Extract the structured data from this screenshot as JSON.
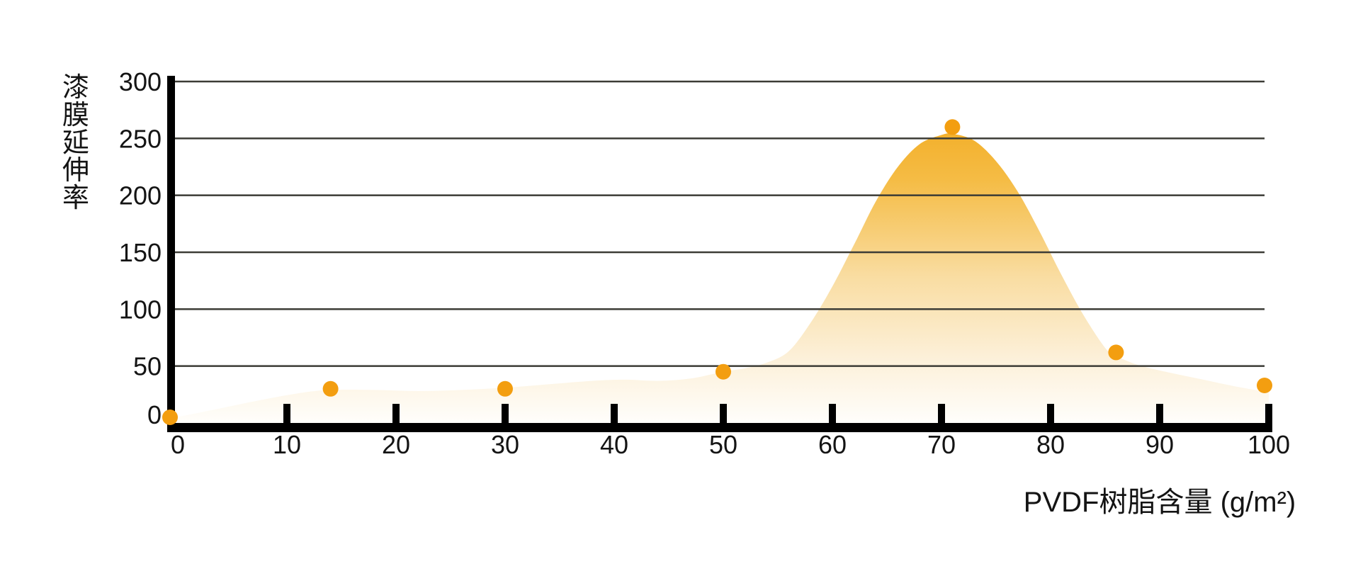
{
  "page": {
    "background_color": "#ffffff"
  },
  "chart_data": {
    "type": "area",
    "title": "",
    "xlabel": "PVDF树脂含量 (g/m²)",
    "ylabel": "漆膜延伸率",
    "xlim": [
      0,
      100
    ],
    "ylim": [
      0,
      300
    ],
    "x_ticks": [
      0,
      10,
      20,
      30,
      40,
      50,
      60,
      70,
      80,
      90,
      100
    ],
    "y_ticks": [
      0,
      50,
      100,
      150,
      200,
      250,
      300
    ],
    "grid": "horizontal-only",
    "legend": "none",
    "points": [
      {
        "x": 0,
        "y": 5
      },
      {
        "x": 14,
        "y": 30
      },
      {
        "x": 30,
        "y": 30
      },
      {
        "x": 50,
        "y": 45
      },
      {
        "x": 71,
        "y": 260
      },
      {
        "x": 86,
        "y": 62
      },
      {
        "x": 100,
        "y": 33
      }
    ],
    "area_outline": [
      [
        -0.7,
        4
      ],
      [
        3,
        11
      ],
      [
        7,
        19
      ],
      [
        11,
        26
      ],
      [
        14,
        29
      ],
      [
        18,
        29
      ],
      [
        22,
        28
      ],
      [
        26,
        29
      ],
      [
        30,
        31
      ],
      [
        34,
        34
      ],
      [
        38,
        37
      ],
      [
        41,
        38
      ],
      [
        44,
        37
      ],
      [
        47,
        39
      ],
      [
        50,
        45
      ],
      [
        52,
        48
      ],
      [
        54,
        53
      ],
      [
        56,
        63
      ],
      [
        58,
        88
      ],
      [
        60,
        120
      ],
      [
        62,
        157
      ],
      [
        64,
        195
      ],
      [
        66,
        225
      ],
      [
        68,
        245
      ],
      [
        70,
        253
      ],
      [
        71,
        254
      ],
      [
        73,
        248
      ],
      [
        75,
        230
      ],
      [
        77,
        203
      ],
      [
        79,
        168
      ],
      [
        81,
        130
      ],
      [
        83,
        95
      ],
      [
        85,
        66
      ],
      [
        86,
        59
      ],
      [
        88,
        51
      ],
      [
        91,
        44
      ],
      [
        94,
        38
      ],
      [
        97,
        32
      ],
      [
        100,
        27
      ]
    ],
    "colors": {
      "marker": "#F39E10",
      "axis": "#000000",
      "gridline": "#3C3C36",
      "text": "#141414",
      "area_gradient_stops": [
        {
          "offset": 0,
          "color": "#F1A81C"
        },
        {
          "offset": 0.25,
          "color": "#F5BC45"
        },
        {
          "offset": 0.55,
          "color": "#F9DDA2"
        },
        {
          "offset": 0.8,
          "color": "#FCF0D9"
        },
        {
          "offset": 1,
          "color": "#FFFEFB"
        }
      ]
    }
  }
}
